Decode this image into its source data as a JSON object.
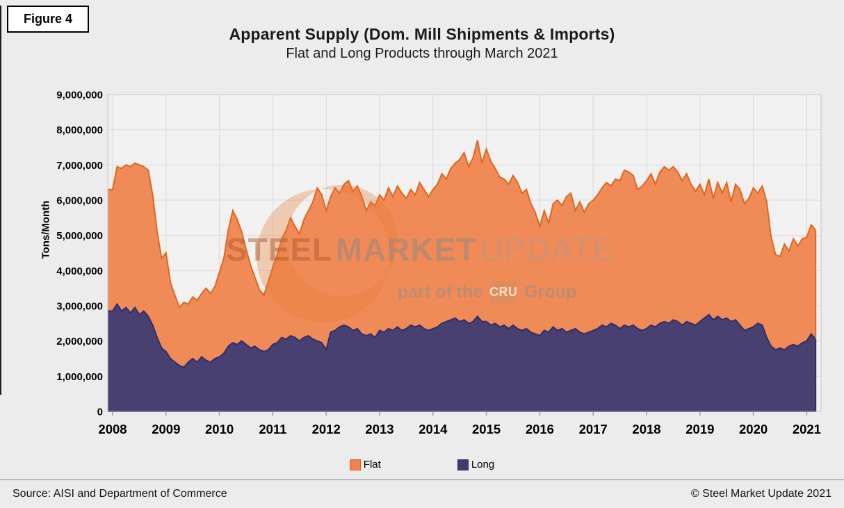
{
  "figure_label": "Figure 4",
  "title": "Apparent Supply (Dom. Mill Shipments & Imports)",
  "subtitle": "Flat and Long Products through March 2021",
  "footer": {
    "source": "Source: AISI and Department of Commerce",
    "copyright": "© Steel Market Update 2021"
  },
  "watermark": {
    "word1": "STEEL",
    "word2": "MARKET",
    "word3": "UPDATE",
    "part_of_the": "part of the",
    "badge": "CRU",
    "group": "Group"
  },
  "colors": {
    "page_bg": "#ECECEC",
    "plot_bg": "#F1F1F1",
    "gridline": "#DADADA",
    "plot_border": "#C6C6C6",
    "axis": "#9C9C9C",
    "text": "#000000",
    "flat_fill": "#F0834C",
    "flat_line": "#E0661C",
    "long_fill": "#423A6B",
    "long_line": "#2F2D68"
  },
  "chart_data": {
    "type": "area",
    "stacked": true,
    "title": "Apparent Supply (Dom. Mill Shipments & Imports)",
    "subtitle": "Flat and Long Products through March 2021",
    "xlabel": "",
    "ylabel": "Tons/Month",
    "unit": "million tons per month",
    "ylim": [
      0,
      9000000
    ],
    "ytick_step": 1000000,
    "x_start": "2008-01",
    "x_end": "2021-03",
    "months_count": 159,
    "grid": true,
    "legend_position": "bottom",
    "year_labels": [
      "2008",
      "2009",
      "2010",
      "2011",
      "2012",
      "2013",
      "2014",
      "2015",
      "2016",
      "2017",
      "2018",
      "2019",
      "2020",
      "2021"
    ],
    "legend": [
      {
        "name": "Flat",
        "fill": "#F0834C",
        "border": "#D95E1E"
      },
      {
        "name": "Long",
        "fill": "#423A6B",
        "border": "#2F2D68"
      }
    ],
    "series": [
      {
        "name": "Long",
        "fill": "#423A6B",
        "line": "#2F2D68",
        "values_mt": [
          2.85,
          3.05,
          2.85,
          2.95,
          2.8,
          2.95,
          2.75,
          2.85,
          2.7,
          2.45,
          2.1,
          1.8,
          1.7,
          1.5,
          1.4,
          1.3,
          1.25,
          1.4,
          1.5,
          1.4,
          1.55,
          1.45,
          1.4,
          1.5,
          1.55,
          1.65,
          1.85,
          1.95,
          1.9,
          2.0,
          1.9,
          1.8,
          1.85,
          1.75,
          1.7,
          1.75,
          1.9,
          1.95,
          2.1,
          2.05,
          2.15,
          2.1,
          2.0,
          2.1,
          2.15,
          2.05,
          2.0,
          1.95,
          1.75,
          2.25,
          2.3,
          2.4,
          2.45,
          2.4,
          2.3,
          2.35,
          2.2,
          2.15,
          2.2,
          2.1,
          2.3,
          2.25,
          2.35,
          2.3,
          2.4,
          2.3,
          2.35,
          2.45,
          2.4,
          2.45,
          2.35,
          2.3,
          2.35,
          2.4,
          2.5,
          2.55,
          2.6,
          2.65,
          2.55,
          2.6,
          2.5,
          2.55,
          2.7,
          2.55,
          2.55,
          2.45,
          2.5,
          2.4,
          2.45,
          2.35,
          2.45,
          2.35,
          2.3,
          2.35,
          2.25,
          2.2,
          2.15,
          2.3,
          2.25,
          2.4,
          2.3,
          2.35,
          2.25,
          2.3,
          2.35,
          2.25,
          2.2,
          2.25,
          2.3,
          2.35,
          2.45,
          2.4,
          2.5,
          2.45,
          2.35,
          2.45,
          2.4,
          2.45,
          2.35,
          2.3,
          2.35,
          2.45,
          2.4,
          2.5,
          2.55,
          2.5,
          2.6,
          2.55,
          2.45,
          2.55,
          2.5,
          2.45,
          2.55,
          2.65,
          2.75,
          2.6,
          2.7,
          2.6,
          2.65,
          2.55,
          2.6,
          2.45,
          2.3,
          2.35,
          2.4,
          2.5,
          2.45,
          2.1,
          1.85,
          1.75,
          1.8,
          1.75,
          1.85,
          1.9,
          1.85,
          1.95,
          2.0,
          2.2,
          2.05
        ]
      },
      {
        "name": "Flat",
        "fill": "#F0834C",
        "line": "#E0661C",
        "values_mt": [
          3.45,
          3.9,
          4.05,
          4.05,
          4.15,
          4.1,
          4.25,
          4.1,
          4.15,
          3.7,
          3.0,
          2.55,
          2.8,
          2.15,
          1.9,
          1.65,
          1.85,
          1.65,
          1.75,
          1.75,
          1.8,
          2.05,
          1.95,
          2.05,
          2.4,
          2.7,
          3.3,
          3.75,
          3.55,
          3.1,
          2.7,
          2.35,
          1.95,
          1.7,
          1.6,
          1.95,
          2.2,
          2.5,
          2.8,
          3.1,
          3.35,
          3.15,
          3.05,
          3.35,
          3.55,
          3.9,
          4.35,
          4.2,
          3.95,
          3.85,
          4.05,
          3.8,
          4.0,
          4.15,
          3.95,
          4.05,
          3.9,
          3.55,
          3.75,
          3.75,
          3.85,
          3.75,
          4.0,
          3.8,
          4.0,
          3.9,
          3.7,
          3.85,
          3.75,
          4.05,
          3.95,
          3.8,
          3.95,
          4.05,
          4.25,
          4.05,
          4.3,
          4.4,
          4.6,
          4.75,
          4.45,
          4.65,
          5.0,
          4.5,
          4.9,
          4.65,
          4.4,
          4.25,
          4.15,
          4.1,
          4.25,
          4.15,
          3.9,
          3.95,
          3.65,
          3.45,
          3.1,
          3.4,
          3.1,
          3.5,
          3.7,
          3.5,
          3.85,
          3.9,
          3.35,
          3.7,
          3.45,
          3.65,
          3.7,
          3.8,
          3.9,
          4.1,
          3.9,
          4.15,
          4.2,
          4.4,
          4.4,
          4.25,
          3.95,
          4.1,
          4.2,
          4.3,
          4.05,
          4.3,
          4.4,
          4.35,
          4.35,
          4.25,
          4.1,
          4.2,
          3.95,
          3.8,
          3.9,
          3.5,
          3.85,
          3.45,
          3.8,
          3.6,
          3.85,
          3.4,
          3.85,
          3.85,
          3.6,
          3.7,
          3.95,
          3.7,
          3.95,
          3.85,
          3.1,
          2.7,
          2.6,
          3.0,
          2.7,
          3.0,
          2.85,
          2.95,
          2.95,
          3.1,
          3.1
        ]
      }
    ]
  }
}
